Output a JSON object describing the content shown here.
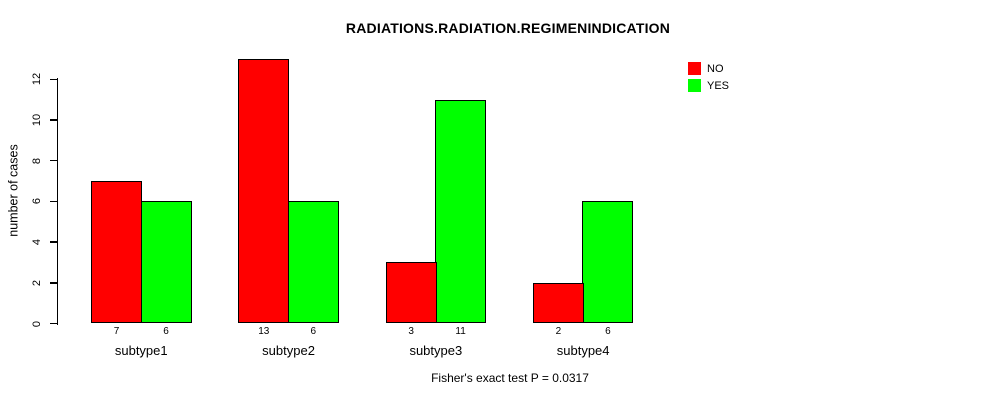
{
  "chart_data": {
    "type": "bar",
    "title": "RADIATIONS.RADIATION.REGIMENINDICATION",
    "ylabel": "number of cases",
    "xlabel": "",
    "annotation": "Fisher's exact test P = 0.0317",
    "categories": [
      "subtype1",
      "subtype2",
      "subtype3",
      "subtype4"
    ],
    "series": [
      {
        "name": "NO",
        "color": "#ff0000",
        "values": [
          7,
          13,
          3,
          2
        ]
      },
      {
        "name": "YES",
        "color": "#00ff00",
        "values": [
          6,
          6,
          11,
          6
        ]
      }
    ],
    "show_bar_value_labels": true,
    "yticks": [
      0,
      2,
      4,
      6,
      8,
      10,
      12
    ],
    "ylim": [
      0,
      13
    ],
    "grid": false,
    "legend_position": "top-right",
    "colors": {
      "background": "#ffffff",
      "text": "#000000",
      "axis": "#000000"
    }
  }
}
